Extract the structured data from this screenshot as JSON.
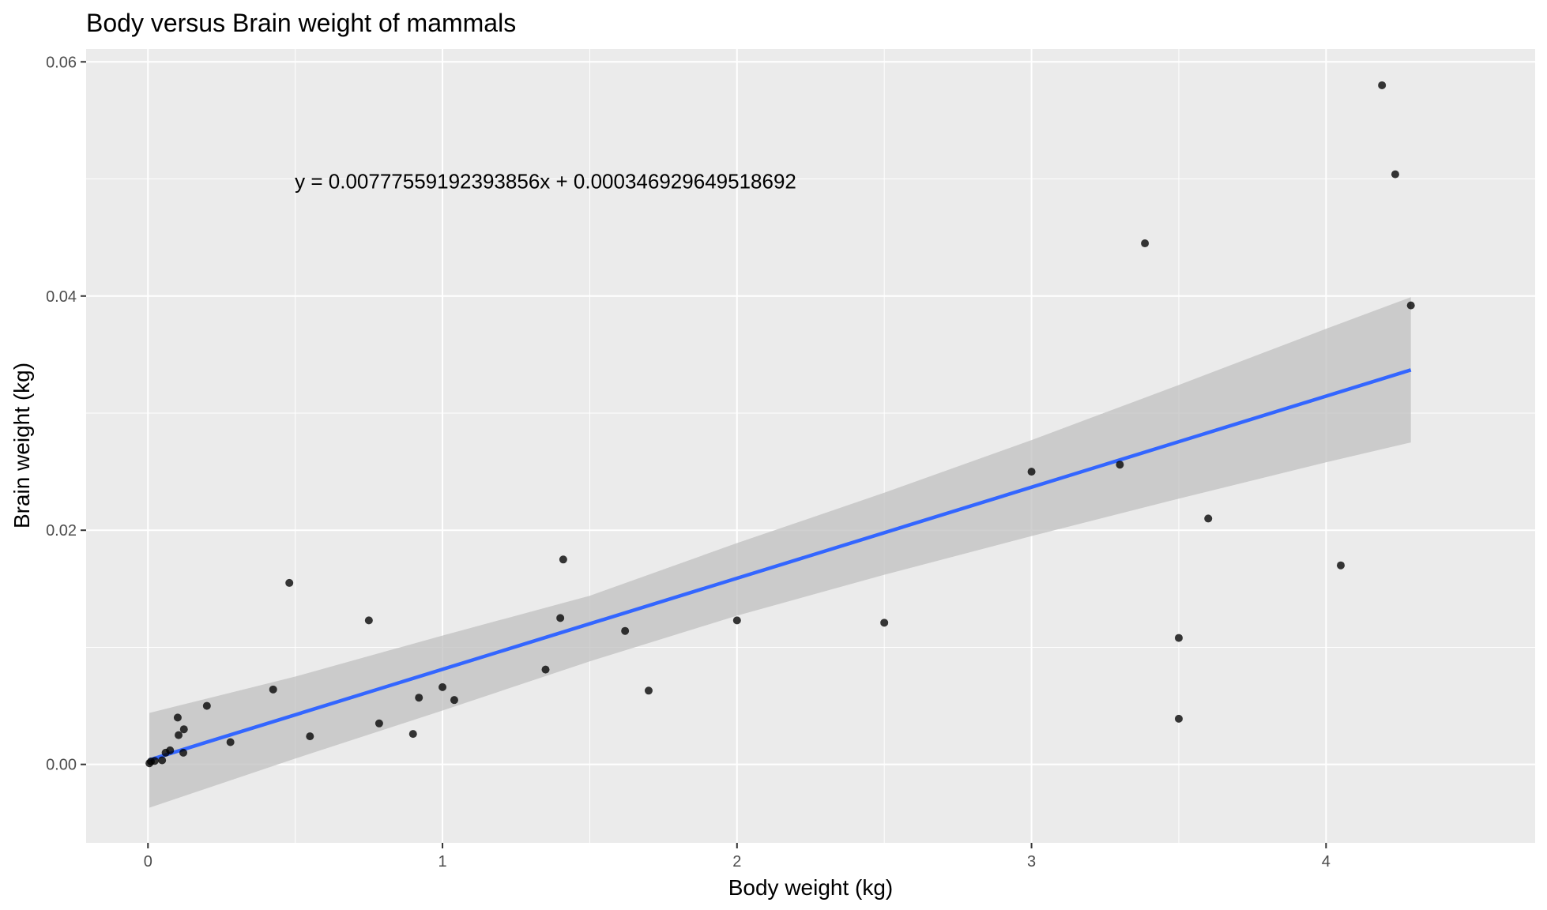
{
  "chart_data": {
    "type": "scatter",
    "title": "Body versus Brain weight of mammals",
    "xlabel": "Body weight (kg)",
    "ylabel": "Brain weight (kg)",
    "xlim": [
      -0.21,
      4.71
    ],
    "ylim": [
      -0.0067,
      0.0611
    ],
    "x_ticks": [
      0,
      1,
      2,
      3,
      4
    ],
    "x_tick_labels": [
      "0",
      "1",
      "2",
      "3",
      "4"
    ],
    "y_ticks": [
      0.0,
      0.02,
      0.04,
      0.06
    ],
    "y_tick_labels": [
      "0.00",
      "0.02",
      "0.04",
      "0.06"
    ],
    "grid": true,
    "legend": "none",
    "colors": {
      "panel": "#ebebeb",
      "grid": "#ffffff",
      "points": "#000000",
      "fit_line": "#3366ff",
      "ribbon": "#bebebe"
    },
    "annotation": {
      "text": "y = 0.00777559192393856x + 0.000346929649518692",
      "x": 1.35,
      "y": 0.0498
    },
    "fit": {
      "slope": 0.00777559192393856,
      "intercept": 0.000346929649518692,
      "x_range": [
        0.005,
        4.288
      ]
    },
    "confidence_band": [
      {
        "x": 0.005,
        "lower": -0.0037,
        "upper": 0.0044
      },
      {
        "x": 0.5,
        "lower": 0.0005,
        "upper": 0.0075
      },
      {
        "x": 1.0,
        "lower": 0.0046,
        "upper": 0.011
      },
      {
        "x": 1.5,
        "lower": 0.0088,
        "upper": 0.0144
      },
      {
        "x": 2.0,
        "lower": 0.0127,
        "upper": 0.0189
      },
      {
        "x": 2.5,
        "lower": 0.0162,
        "upper": 0.0232
      },
      {
        "x": 3.0,
        "lower": 0.0195,
        "upper": 0.0277
      },
      {
        "x": 3.5,
        "lower": 0.0227,
        "upper": 0.0324
      },
      {
        "x": 4.0,
        "lower": 0.0258,
        "upper": 0.0372
      },
      {
        "x": 4.288,
        "lower": 0.0275,
        "upper": 0.0399
      }
    ],
    "points": [
      {
        "x": 0.005,
        "y": 0.0001
      },
      {
        "x": 0.01,
        "y": 0.00025
      },
      {
        "x": 0.023,
        "y": 0.0003
      },
      {
        "x": 0.048,
        "y": 0.00035
      },
      {
        "x": 0.06,
        "y": 0.001
      },
      {
        "x": 0.075,
        "y": 0.0012
      },
      {
        "x": 0.101,
        "y": 0.004
      },
      {
        "x": 0.104,
        "y": 0.0025
      },
      {
        "x": 0.12,
        "y": 0.001
      },
      {
        "x": 0.122,
        "y": 0.003
      },
      {
        "x": 0.2,
        "y": 0.005
      },
      {
        "x": 0.28,
        "y": 0.0019
      },
      {
        "x": 0.425,
        "y": 0.0064
      },
      {
        "x": 0.48,
        "y": 0.0155
      },
      {
        "x": 0.55,
        "y": 0.0024
      },
      {
        "x": 0.75,
        "y": 0.0123
      },
      {
        "x": 0.785,
        "y": 0.0035
      },
      {
        "x": 0.9,
        "y": 0.0026
      },
      {
        "x": 0.92,
        "y": 0.0057
      },
      {
        "x": 1.0,
        "y": 0.0066
      },
      {
        "x": 1.04,
        "y": 0.0055
      },
      {
        "x": 1.35,
        "y": 0.0081
      },
      {
        "x": 1.4,
        "y": 0.0125
      },
      {
        "x": 1.41,
        "y": 0.0175
      },
      {
        "x": 1.62,
        "y": 0.0114
      },
      {
        "x": 1.7,
        "y": 0.0063
      },
      {
        "x": 2.0,
        "y": 0.0123
      },
      {
        "x": 2.5,
        "y": 0.0121
      },
      {
        "x": 3.0,
        "y": 0.025
      },
      {
        "x": 3.3,
        "y": 0.0256
      },
      {
        "x": 3.385,
        "y": 0.0445
      },
      {
        "x": 3.5,
        "y": 0.0108
      },
      {
        "x": 3.5,
        "y": 0.0039
      },
      {
        "x": 3.6,
        "y": 0.021
      },
      {
        "x": 4.05,
        "y": 0.017
      },
      {
        "x": 4.19,
        "y": 0.058
      },
      {
        "x": 4.235,
        "y": 0.0504
      },
      {
        "x": 4.288,
        "y": 0.0392
      }
    ]
  }
}
